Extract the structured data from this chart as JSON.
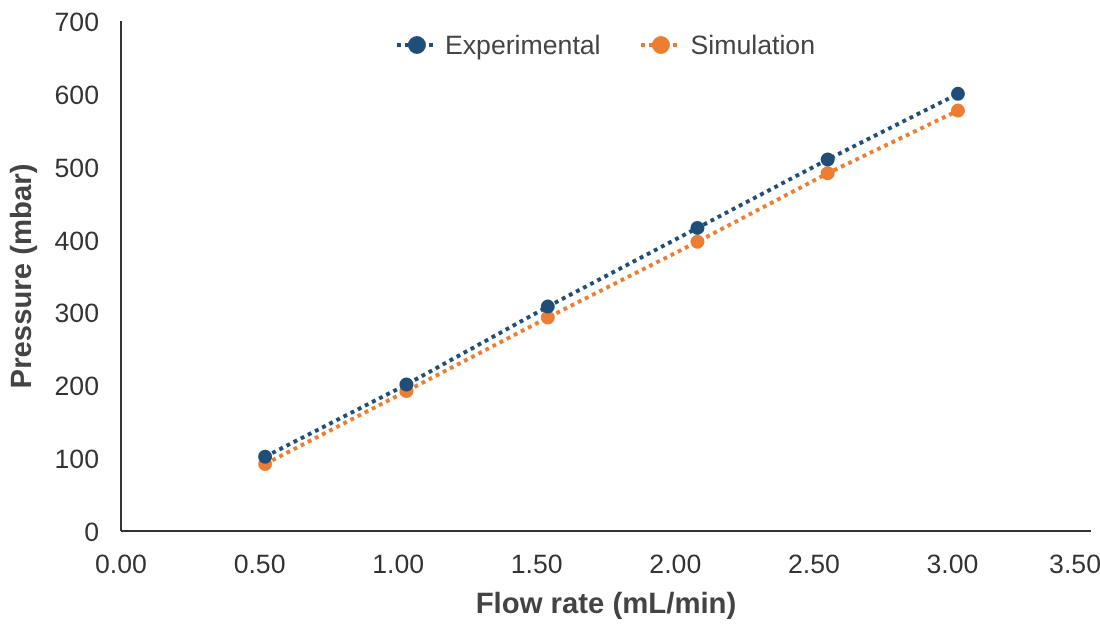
{
  "chart_data": {
    "type": "line",
    "xlabel": "Flow rate (mL/min)",
    "ylabel": "Pressure (mbar)",
    "x": [
      0.52,
      1.03,
      1.54,
      2.08,
      2.55,
      3.02
    ],
    "series": [
      {
        "name": "Experimental",
        "color": "#1f4e79",
        "values": [
          102,
          201,
          308,
          416,
          510,
          600
        ]
      },
      {
        "name": "Simulation",
        "color": "#ed7d31",
        "values": [
          92,
          192,
          293,
          397,
          491,
          577
        ]
      }
    ],
    "xlim": [
      0,
      3.5
    ],
    "xticks": [
      {
        "value": 0,
        "label": "0.00"
      },
      {
        "value": 0.5,
        "label": "0.50"
      },
      {
        "value": 1,
        "label": "1.00"
      },
      {
        "value": 1.5,
        "label": "1.50"
      },
      {
        "value": 2,
        "label": "2.00"
      },
      {
        "value": 2.5,
        "label": "2.50"
      },
      {
        "value": 3,
        "label": "3.00"
      },
      {
        "value": 3.5,
        "label": "3.50"
      }
    ],
    "ylim": [
      0,
      700
    ],
    "yticks": [
      0,
      100,
      200,
      300,
      400,
      500,
      600,
      700
    ],
    "grid": false,
    "legend": "top",
    "marker": "circle",
    "line_style": "dotted"
  }
}
